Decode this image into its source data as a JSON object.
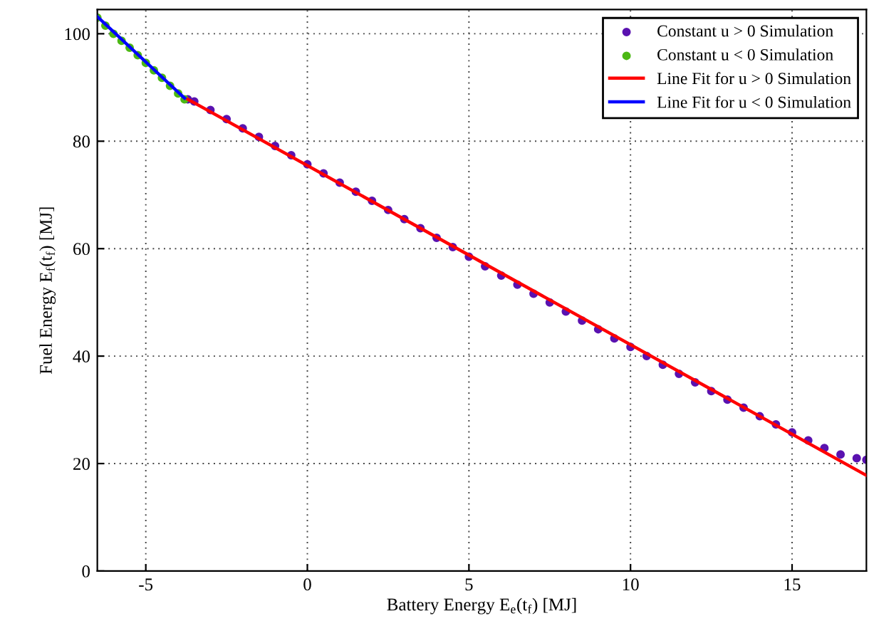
{
  "chart_data": {
    "type": "scatter",
    "xlabel": "Battery Energy E$_{e}$(t$_{f}$) [MJ]",
    "ylabel": "Fuel Energy E$_{f}$(t$_{f}$) [MJ]",
    "xlim": [
      -6.5,
      17.3
    ],
    "ylim": [
      0,
      104.5
    ],
    "xticks": [
      -5,
      0,
      5,
      10,
      15
    ],
    "yticks": [
      0,
      20,
      40,
      60,
      80,
      100
    ],
    "grid": true,
    "legend": "top right",
    "series": [
      {
        "name": "Constant u > 0 Simulation",
        "marker": "circle",
        "color": "#5a12b0",
        "x": [
          -3.7,
          -3.5,
          -3,
          -2.5,
          -2,
          -1.5,
          -1,
          -0.5,
          0,
          0.5,
          1,
          1.5,
          2,
          2.5,
          3,
          3.5,
          4,
          4.5,
          5,
          5.5,
          6,
          6.5,
          7,
          7.5,
          8,
          8.5,
          9,
          9.5,
          10,
          10.5,
          11,
          11.5,
          12,
          12.5,
          13,
          13.5,
          14,
          14.5,
          15,
          15.5,
          16,
          16.5,
          17,
          17.3
        ],
        "values": [
          87.8,
          87.4,
          85.8,
          84.1,
          82.4,
          80.8,
          79.1,
          77.4,
          75.7,
          74.0,
          72.3,
          70.6,
          68.9,
          67.2,
          65.5,
          63.8,
          62.0,
          60.3,
          58.5,
          56.7,
          55.0,
          53.3,
          51.6,
          50.0,
          48.3,
          46.6,
          45.0,
          43.3,
          41.7,
          40.0,
          38.4,
          36.7,
          35.1,
          33.5,
          31.9,
          30.4,
          28.8,
          27.3,
          25.8,
          24.3,
          22.9,
          21.7,
          21.0,
          20.7
        ]
      },
      {
        "name": "Constant u < 0 Simulation",
        "marker": "circle",
        "color": "#4cb814",
        "x": [
          -6.5,
          -6.25,
          -6,
          -5.75,
          -5.5,
          -5.25,
          -5,
          -4.75,
          -4.5,
          -4.25,
          -4,
          -3.8
        ],
        "values": [
          103.0,
          101.5,
          100.0,
          98.7,
          97.4,
          96.0,
          94.6,
          93.2,
          91.8,
          90.3,
          88.9,
          87.8
        ]
      },
      {
        "name": "Line Fit for u > 0 Simulation",
        "type": "line",
        "marker": "none",
        "color": "#ff0000",
        "x": [
          -3.7,
          17.3
        ],
        "values": [
          87.8,
          17.8
        ]
      },
      {
        "name": "Line Fit for u < 0 Simulation",
        "type": "line",
        "marker": "none",
        "color": "#0000ff",
        "x": [
          -6.5,
          -3.8
        ],
        "values": [
          103.2,
          88.0
        ]
      }
    ]
  }
}
